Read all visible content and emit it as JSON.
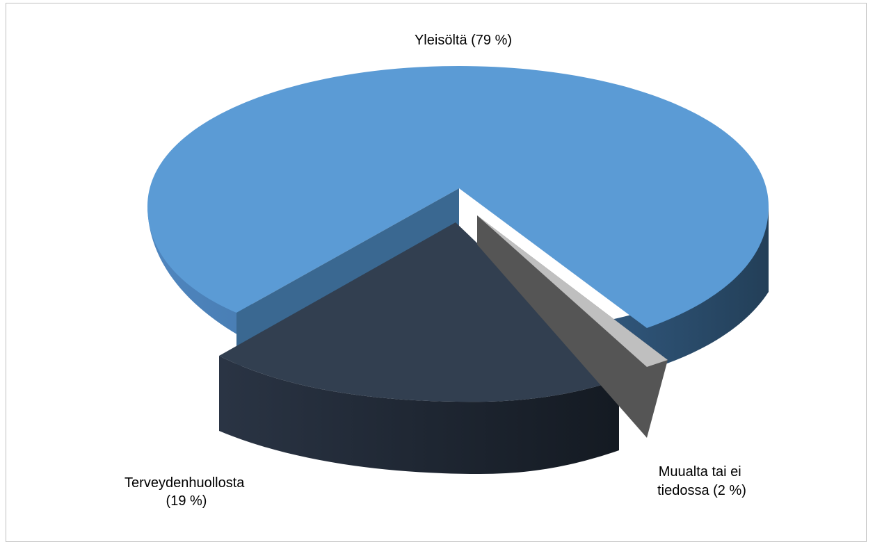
{
  "chart_data": {
    "type": "pie",
    "style": "3d-exploded",
    "slices": [
      {
        "label": "Yleisöltä (79 %)",
        "value": 79,
        "color": "#5b9bd5"
      },
      {
        "label": "Terveydenhuollosta (19 %)",
        "label_lines": [
          "Terveydenhuollosta",
          "(19 %)"
        ],
        "value": 19,
        "color": "#323f50"
      },
      {
        "label": "Muualta tai ei tiedossa (2 %)",
        "label_lines": [
          "Muualta tai ei",
          "tiedossa (2 %)"
        ],
        "value": 2,
        "color": "#7f7f7f"
      }
    ],
    "legend": "none"
  }
}
